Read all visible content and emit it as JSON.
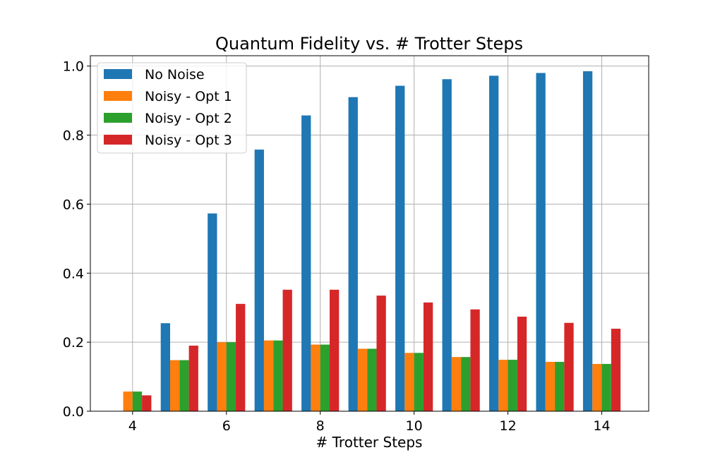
{
  "chart_data": {
    "type": "bar",
    "title": "Quantum Fidelity vs. # Trotter Steps",
    "xlabel": "# Trotter Steps",
    "ylabel": "",
    "x": [
      4,
      5,
      6,
      7,
      8,
      9,
      10,
      11,
      12,
      13,
      14
    ],
    "xticks": [
      4,
      6,
      8,
      10,
      12,
      14
    ],
    "yticks": [
      0.0,
      0.2,
      0.4,
      0.6,
      0.8,
      1.0
    ],
    "xlim": [
      3.1,
      15.0
    ],
    "ylim": [
      0.0,
      1.03
    ],
    "grid": true,
    "legend_position": "top-left",
    "series": [
      {
        "name": "No Noise",
        "color": "#1f77b4",
        "values": [
          0.0,
          0.255,
          0.573,
          0.758,
          0.857,
          0.91,
          0.943,
          0.962,
          0.972,
          0.98,
          0.985
        ]
      },
      {
        "name": "Noisy - Opt 1",
        "color": "#ff7f0e",
        "values": [
          0.057,
          0.148,
          0.2,
          0.205,
          0.193,
          0.181,
          0.169,
          0.157,
          0.149,
          0.143,
          0.137
        ]
      },
      {
        "name": "Noisy - Opt 2",
        "color": "#2ca02c",
        "values": [
          0.057,
          0.148,
          0.2,
          0.205,
          0.193,
          0.181,
          0.169,
          0.157,
          0.149,
          0.143,
          0.137
        ]
      },
      {
        "name": "Noisy - Opt 3",
        "color": "#d62728",
        "values": [
          0.046,
          0.19,
          0.311,
          0.352,
          0.352,
          0.335,
          0.315,
          0.295,
          0.274,
          0.256,
          0.239
        ]
      }
    ]
  }
}
